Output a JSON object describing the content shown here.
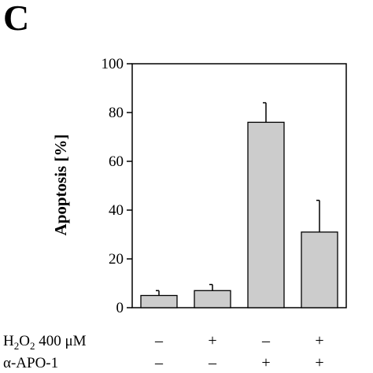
{
  "panel_label": "C",
  "chart_data": {
    "type": "bar",
    "ylabel": "Apoptosis [%]",
    "ylim": [
      0,
      100
    ],
    "yticks": [
      0,
      20,
      40,
      60,
      80,
      100
    ],
    "grid": false,
    "legend": "none",
    "bar_color": "#cccccc",
    "values": [
      5,
      7,
      76,
      31
    ],
    "errors": [
      2,
      2.5,
      8,
      13
    ],
    "conditions": [
      {
        "label_parts": [
          "H",
          "2",
          "O",
          "2",
          " 400 μM"
        ],
        "signs": [
          "–",
          "+",
          "–",
          "+"
        ]
      },
      {
        "label_parts": [
          "α-APO-1"
        ],
        "signs": [
          "–",
          "–",
          "+",
          "+"
        ]
      }
    ]
  }
}
